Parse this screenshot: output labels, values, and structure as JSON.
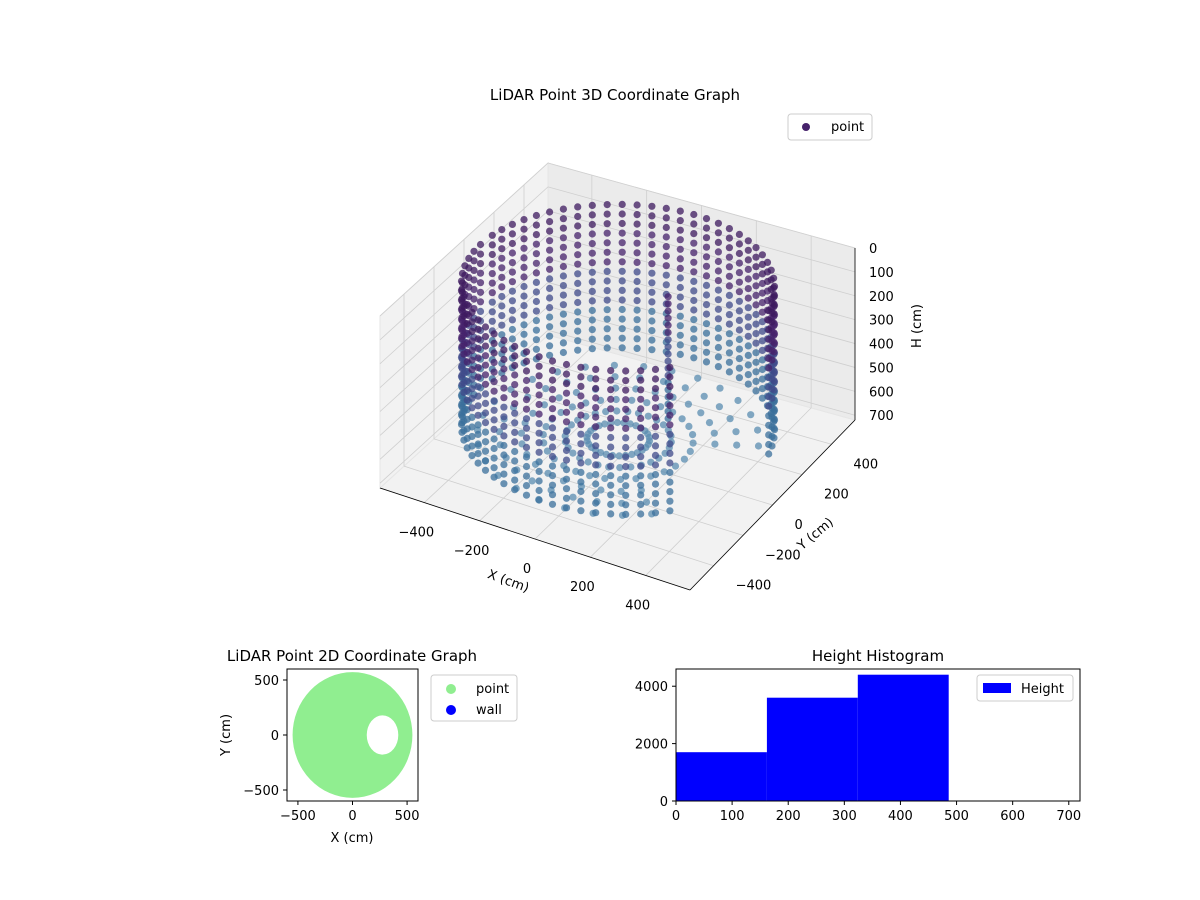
{
  "chart_data": [
    {
      "type": "scatter",
      "title": "LiDAR Point 3D Coordinate Graph",
      "xlabel": "X (cm)",
      "ylabel": "Y (cm)",
      "zlabel": "H (cm)",
      "x_ticks": [
        "−400",
        "−200",
        "0",
        "200",
        "400"
      ],
      "y_ticks": [
        "−400",
        "−200",
        "0",
        "200",
        "400"
      ],
      "z_ticks": [
        "0",
        "100",
        "200",
        "300",
        "400",
        "500",
        "600",
        "700"
      ],
      "xlim": [
        -560,
        560
      ],
      "ylim": [
        -560,
        560
      ],
      "zlim": [
        0,
        720
      ],
      "z_inverted": true,
      "grid": true,
      "legend": {
        "placement": "top-right",
        "entries": [
          {
            "label": "point",
            "color": "#46226b"
          }
        ]
      },
      "colormap": [
        "#3d1a5f",
        "#46226b",
        "#3f4a89",
        "#3a6f9b",
        "#5a8cb0"
      ],
      "description_series": {
        "name": "point",
        "wall_radius_cm": 500,
        "wall_height_cm": [
          0,
          600
        ],
        "gap_sectors_deg": [
          [
            -40,
            12
          ],
          [
            175,
            200
          ]
        ],
        "interior_column": {
          "x": 100,
          "y": 150
        }
      }
    },
    {
      "type": "scatter",
      "title": "LiDAR Point 2D Coordinate Graph",
      "xlabel": "X (cm)",
      "ylabel": "Y (cm)",
      "x_ticks": [
        "−500",
        "0",
        "500"
      ],
      "y_ticks": [
        "−500",
        "0",
        "500"
      ],
      "xlim": [
        -600,
        600
      ],
      "ylim": [
        -600,
        600
      ],
      "grid": false,
      "legend": {
        "placement": "outside-right",
        "entries": [
          {
            "label": "point",
            "color": "#90ee90"
          },
          {
            "label": "wall",
            "color": "#0000ff"
          }
        ]
      },
      "region": {
        "radius_cm": 560,
        "hole_center": [
          275,
          0
        ],
        "hole_radius_cm": 170
      }
    },
    {
      "type": "bar",
      "title": "Height Histogram",
      "xlabel": "",
      "ylabel": "",
      "bins": [
        [
          0,
          162
        ],
        [
          162,
          324
        ],
        [
          324,
          486
        ]
      ],
      "values": [
        1700,
        3600,
        4400
      ],
      "xlim": [
        0,
        720
      ],
      "ylim": [
        0,
        4600
      ],
      "x_ticks": [
        "0",
        "100",
        "200",
        "300",
        "400",
        "500",
        "600",
        "700"
      ],
      "y_ticks": [
        "0",
        "2000",
        "4000"
      ],
      "color": "#0000ff",
      "legend": {
        "placement": "top-right",
        "entries": [
          {
            "label": "Height",
            "color": "#0000ff"
          }
        ]
      }
    }
  ]
}
